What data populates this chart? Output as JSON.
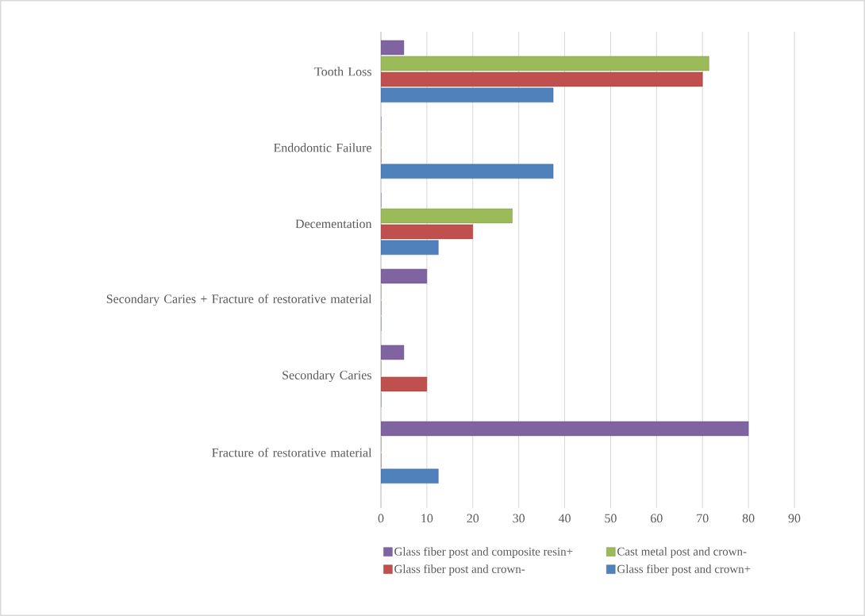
{
  "chart_data": {
    "type": "bar",
    "orientation": "horizontal",
    "categories": [
      "Tooth Loss",
      "Endodontic Failure",
      "Decementation",
      "Secondary Caries + Fracture of restorative material",
      "Secondary Caries",
      "Fracture of restorative material"
    ],
    "series": [
      {
        "name": "Glass fiber post and composite resin+",
        "color": "#8064a2",
        "values": [
          5,
          0,
          0,
          10,
          5,
          80
        ]
      },
      {
        "name": "Cast metal post and crown-",
        "color": "#9bbb59",
        "values": [
          71.4,
          0,
          28.6,
          0,
          0,
          0
        ]
      },
      {
        "name": "Glass fiber post and crown-",
        "color": "#c0504d",
        "values": [
          70,
          0,
          20,
          0,
          10,
          0
        ]
      },
      {
        "name": "Glass fiber post and crown+",
        "color": "#4f81bd",
        "values": [
          37.5,
          37.5,
          12.5,
          0,
          0,
          12.5
        ]
      }
    ],
    "xlim": [
      0,
      90
    ],
    "xticks": [
      0,
      10,
      20,
      30,
      40,
      50,
      60,
      70,
      80,
      90
    ],
    "grid": "x",
    "legend": "bottom"
  }
}
